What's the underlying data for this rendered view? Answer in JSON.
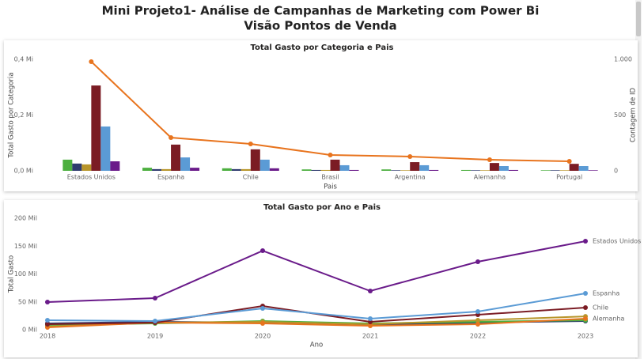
{
  "header": {
    "title": "Mini Projeto1- Análise de Campanhas de Marketing com Power Bi",
    "subtitle": "Visão Pontos de Venda"
  },
  "chart_data": [
    {
      "type": "bar",
      "title": "Total Gasto por Categoria e Pais",
      "x_label": "Pais",
      "y_label": "Total Gasto por Categoria",
      "y2_label": "Contagem de ID",
      "categories": [
        "Estados Unidos",
        "Espanha",
        "Chile",
        "Brasil",
        "Argentina",
        "Alemanha",
        "Portugal"
      ],
      "series": [
        {
          "color": "#4caf3f",
          "values": [
            0.04,
            0.011,
            0.009,
            0.005,
            0.005,
            0.003,
            0.002
          ]
        },
        {
          "color": "#2e3b6e",
          "values": [
            0.026,
            0.006,
            0.006,
            0.003,
            0.002,
            0.002,
            0.002
          ]
        },
        {
          "color": "#b8952a",
          "values": [
            0.023,
            0.006,
            0.006,
            0.003,
            0.002,
            0.002,
            0.002
          ]
        },
        {
          "color": "#7b1c24",
          "values": [
            0.306,
            0.094,
            0.077,
            0.04,
            0.031,
            0.028,
            0.025
          ]
        },
        {
          "color": "#5b9bd5",
          "values": [
            0.159,
            0.048,
            0.04,
            0.02,
            0.02,
            0.017,
            0.017
          ]
        },
        {
          "color": "#6a1b8a",
          "values": [
            0.034,
            0.011,
            0.009,
            0.003,
            0.003,
            0.003,
            0.002
          ]
        },
        {
          "type": "line",
          "axis": "y2",
          "color": "#e8741e",
          "values": [
            979,
            298,
            241,
            142,
            128,
            99,
            85
          ]
        }
      ],
      "ylim": [
        0,
        0.4
      ],
      "yticks": [
        {
          "value": 0,
          "label": "0,0 Mi"
        },
        {
          "value": 0.2,
          "label": "0,2 Mi"
        },
        {
          "value": 0.4,
          "label": "0,4 Mi"
        }
      ],
      "y2lim": [
        0,
        1000
      ],
      "y2ticks": [
        0,
        500,
        {
          "value": 1000,
          "label": "1.000"
        }
      ],
      "grid": false
    },
    {
      "type": "line",
      "title": "Total Gasto por Ano e Pais",
      "x_label": "Ano",
      "y_label": "Total Gasto",
      "x": [
        2018,
        2019,
        2020,
        2021,
        2022,
        2023
      ],
      "xlim": [
        2018,
        2023
      ],
      "xticks": [
        2018,
        2019,
        2020,
        2021,
        2022,
        2023
      ],
      "series": [
        {
          "color": "#2e3b6e",
          "values": [
            11.3,
            14.2,
            12.8,
            8.5,
            12.8,
            15.6
          ]
        },
        {
          "color": "#4caf3f",
          "values": [
            8.5,
            11.3,
            15.6,
            11.3,
            14.2,
            17
          ]
        },
        {
          "color": "#b8952a",
          "values": [
            5.7,
            12.8,
            14.2,
            9.9,
            17,
            24
          ]
        },
        {
          "name": "Alemanha",
          "color": "#e8741e",
          "values": [
            4.3,
            12.8,
            11.3,
            7.1,
            9.9,
            19.9
          ]
        },
        {
          "name": "Chile",
          "color": "#7b1c24",
          "values": [
            9.9,
            12.8,
            42.5,
            14.2,
            26.9,
            39.7
          ]
        },
        {
          "name": "Espanha",
          "color": "#5b9bd5",
          "values": [
            17,
            15.6,
            38.3,
            19.9,
            32.6,
            65.2
          ]
        },
        {
          "name": "Estados Unidos",
          "color": "#6a1b8a",
          "values": [
            49.6,
            56.7,
            141.8,
            69.5,
            122,
            158.9
          ]
        }
      ],
      "ylim": [
        0,
        200
      ],
      "yticks": [
        {
          "value": 0,
          "label": "0 Mil"
        },
        {
          "value": 50,
          "label": "50 Mil"
        },
        {
          "value": 100,
          "label": "100 Mil"
        },
        {
          "value": 150,
          "label": "150 Mil"
        },
        {
          "value": 200,
          "label": "200 Mil"
        }
      ],
      "grid": false
    }
  ]
}
